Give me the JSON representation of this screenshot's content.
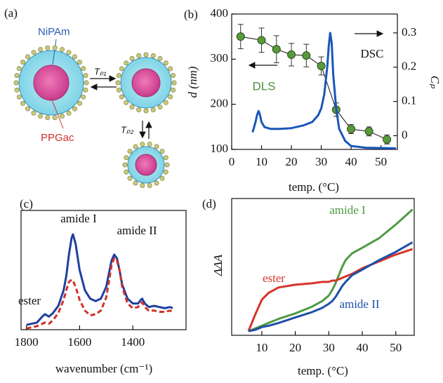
{
  "diagram": {
    "label": "(a)",
    "labels": [
      "NiPAm",
      "PPGac",
      "Tₚ₁",
      "Tₚ₂"
    ]
  },
  "chart_data": [
    {
      "type": "line",
      "label": "(b)",
      "xlabel": "temp. (°C)",
      "ylabel": "d (nm)",
      "y2label": "Cₚ",
      "xlim": [
        0,
        55.5
      ],
      "xticks": [
        0,
        10,
        20,
        30,
        40,
        50
      ],
      "ylim": [
        100,
        400
      ],
      "yticks": [
        100,
        200,
        300,
        400
      ],
      "y2lim": [
        -0.04,
        0.355
      ],
      "y2ticks": [
        0,
        0.1,
        0.2,
        0.3
      ],
      "series": [
        {
          "name": "DLS",
          "color": "#4f8f3a",
          "marker": true,
          "x": [
            3,
            10,
            15,
            20,
            25,
            30,
            35,
            40,
            46,
            52
          ],
          "values": [
            350,
            342,
            322,
            310,
            308,
            285,
            188,
            145,
            140,
            122
          ],
          "errors": [
            27,
            27,
            30,
            25,
            25,
            20,
            15,
            10,
            10,
            10
          ]
        },
        {
          "name": "DSC",
          "color": "#1a56b8",
          "axis": "y2",
          "x": [
            7,
            8,
            8.5,
            9,
            9.5,
            10,
            11,
            13,
            16,
            20,
            24,
            27,
            29,
            30,
            31,
            32,
            32.5,
            33,
            33.5,
            34,
            35,
            36,
            38,
            40,
            45,
            50,
            55
          ],
          "values": [
            0.01,
            0.04,
            0.06,
            0.072,
            0.06,
            0.04,
            0.025,
            0.02,
            0.02,
            0.022,
            0.03,
            0.04,
            0.06,
            0.08,
            0.12,
            0.2,
            0.26,
            0.3,
            0.27,
            0.18,
            0.08,
            0.02,
            -0.015,
            -0.03,
            -0.035,
            -0.036,
            -0.037
          ]
        }
      ]
    },
    {
      "type": "line",
      "label": "(c)",
      "xlabel": "wavenumber (cm⁻¹)",
      "xlim": [
        1820,
        1200
      ],
      "xticks": [
        1800,
        1600,
        1400
      ],
      "ylim": [
        0,
        1
      ],
      "annotations": [
        "amide I",
        "amide II",
        "ester"
      ],
      "series": [
        {
          "color": "#1f3fa0",
          "x": [
            1800,
            1760,
            1740,
            1730,
            1715,
            1700,
            1680,
            1660,
            1650,
            1640,
            1630,
            1625,
            1615,
            1600,
            1580,
            1560,
            1540,
            1520,
            1500,
            1490,
            1480,
            1470,
            1460,
            1450,
            1440,
            1420,
            1400,
            1380,
            1370,
            1365,
            1355,
            1340,
            1320,
            1300,
            1280,
            1260,
            1250
          ],
          "values": [
            0.04,
            0.06,
            0.11,
            0.13,
            0.11,
            0.14,
            0.2,
            0.33,
            0.45,
            0.63,
            0.77,
            0.8,
            0.72,
            0.5,
            0.33,
            0.26,
            0.24,
            0.26,
            0.36,
            0.47,
            0.58,
            0.63,
            0.6,
            0.5,
            0.38,
            0.26,
            0.22,
            0.22,
            0.25,
            0.26,
            0.22,
            0.19,
            0.2,
            0.19,
            0.18,
            0.19,
            0.18
          ]
        },
        {
          "color": "#d0302a",
          "dashed": true,
          "x": [
            1800,
            1760,
            1740,
            1730,
            1715,
            1700,
            1680,
            1660,
            1650,
            1640,
            1630,
            1625,
            1615,
            1600,
            1580,
            1560,
            1540,
            1520,
            1500,
            1490,
            1480,
            1470,
            1460,
            1450,
            1440,
            1420,
            1400,
            1380,
            1370,
            1365,
            1355,
            1340,
            1320,
            1300,
            1280,
            1260,
            1250
          ],
          "values": [
            0.01,
            0.03,
            0.05,
            0.06,
            0.05,
            0.08,
            0.14,
            0.25,
            0.33,
            0.4,
            0.42,
            0.41,
            0.36,
            0.25,
            0.16,
            0.12,
            0.13,
            0.16,
            0.27,
            0.4,
            0.54,
            0.6,
            0.58,
            0.5,
            0.36,
            0.22,
            0.18,
            0.19,
            0.22,
            0.23,
            0.19,
            0.16,
            0.16,
            0.15,
            0.15,
            0.16,
            0.15
          ]
        }
      ]
    },
    {
      "type": "line",
      "label": "(d)",
      "xlabel": "temp. (°C)",
      "ylabel": "ΔΔA",
      "xlim": [
        1,
        55.5
      ],
      "xticks": [
        10,
        20,
        30,
        40,
        50
      ],
      "ylim": [
        0,
        1
      ],
      "series": [
        {
          "name": "amide I",
          "color": "#4f9a44",
          "x": [
            6,
            8,
            10,
            12,
            15,
            20,
            25,
            28,
            30,
            31,
            32,
            33,
            34,
            35,
            37,
            40,
            45,
            50,
            55
          ],
          "values": [
            0.03,
            0.05,
            0.07,
            0.09,
            0.12,
            0.16,
            0.21,
            0.25,
            0.29,
            0.33,
            0.38,
            0.44,
            0.5,
            0.55,
            0.6,
            0.64,
            0.71,
            0.81,
            0.92
          ]
        },
        {
          "name": "ester",
          "color": "#d8322a",
          "x": [
            6,
            8,
            10,
            12,
            15,
            20,
            25,
            28,
            30,
            31,
            32,
            33,
            34,
            35,
            37,
            40,
            45,
            50,
            55
          ],
          "values": [
            0.03,
            0.15,
            0.26,
            0.31,
            0.35,
            0.37,
            0.38,
            0.39,
            0.39,
            0.4,
            0.4,
            0.41,
            0.42,
            0.43,
            0.45,
            0.49,
            0.54,
            0.59,
            0.63
          ]
        },
        {
          "name": "amide II",
          "color": "#1f4fa8",
          "x": [
            6,
            8,
            10,
            12,
            15,
            20,
            25,
            28,
            30,
            31,
            32,
            33,
            34,
            35,
            37,
            40,
            45,
            50,
            55
          ],
          "values": [
            0.03,
            0.04,
            0.06,
            0.07,
            0.09,
            0.13,
            0.17,
            0.2,
            0.23,
            0.25,
            0.28,
            0.32,
            0.36,
            0.39,
            0.44,
            0.48,
            0.55,
            0.61,
            0.68
          ]
        }
      ]
    }
  ]
}
